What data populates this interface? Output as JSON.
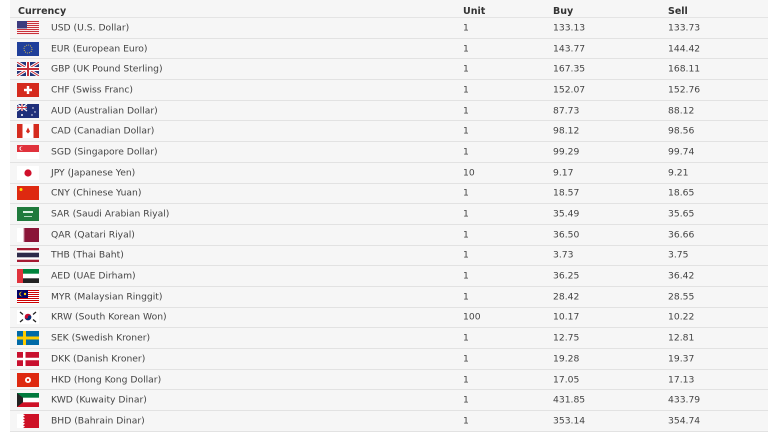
{
  "table": {
    "headers": {
      "currency": "Currency",
      "unit": "Unit",
      "buy": "Buy",
      "sell": "Sell"
    },
    "rows": [
      {
        "code": "USD",
        "name": "USD (U.S. Dollar)",
        "unit": "1",
        "buy": "133.13",
        "sell": "133.73",
        "flag": "us-flag"
      },
      {
        "code": "EUR",
        "name": "EUR (European Euro)",
        "unit": "1",
        "buy": "143.77",
        "sell": "144.42",
        "flag": "eu-flag"
      },
      {
        "code": "GBP",
        "name": "GBP (UK Pound Sterling)",
        "unit": "1",
        "buy": "167.35",
        "sell": "168.11",
        "flag": "uk-flag"
      },
      {
        "code": "CHF",
        "name": "CHF (Swiss Franc)",
        "unit": "1",
        "buy": "152.07",
        "sell": "152.76",
        "flag": "swiss-flag"
      },
      {
        "code": "AUD",
        "name": "AUD (Australian Dollar)",
        "unit": "1",
        "buy": "87.73",
        "sell": "88.12",
        "flag": "australia-flag"
      },
      {
        "code": "CAD",
        "name": "CAD (Canadian Dollar)",
        "unit": "1",
        "buy": "98.12",
        "sell": "98.56",
        "flag": "canada-flag"
      },
      {
        "code": "SGD",
        "name": "SGD (Singapore Dollar)",
        "unit": "1",
        "buy": "99.29",
        "sell": "99.74",
        "flag": "singapore-flag"
      },
      {
        "code": "JPY",
        "name": "JPY (Japanese Yen)",
        "unit": "10",
        "buy": "9.17",
        "sell": "9.21",
        "flag": "japan-flag"
      },
      {
        "code": "CNY",
        "name": "CNY (Chinese Yuan)",
        "unit": "1",
        "buy": "18.57",
        "sell": "18.65",
        "flag": "china-flag"
      },
      {
        "code": "SAR",
        "name": "SAR (Saudi Arabian Riyal)",
        "unit": "1",
        "buy": "35.49",
        "sell": "35.65",
        "flag": "saudi-flag"
      },
      {
        "code": "QAR",
        "name": "QAR (Qatari Riyal)",
        "unit": "1",
        "buy": "36.50",
        "sell": "36.66",
        "flag": "qatar-flag"
      },
      {
        "code": "THB",
        "name": "THB (Thai Baht)",
        "unit": "1",
        "buy": "3.73",
        "sell": "3.75",
        "flag": "thailand-flag"
      },
      {
        "code": "AED",
        "name": "AED (UAE Dirham)",
        "unit": "1",
        "buy": "36.25",
        "sell": "36.42",
        "flag": "uae-flag"
      },
      {
        "code": "MYR",
        "name": "MYR (Malaysian Ringgit)",
        "unit": "1",
        "buy": "28.42",
        "sell": "28.55",
        "flag": "malaysia-flag"
      },
      {
        "code": "KRW",
        "name": "KRW (South Korean Won)",
        "unit": "100",
        "buy": "10.17",
        "sell": "10.22",
        "flag": "korea-flag"
      },
      {
        "code": "SEK",
        "name": "SEK (Swedish Kroner)",
        "unit": "1",
        "buy": "12.75",
        "sell": "12.81",
        "flag": "sweden-flag"
      },
      {
        "code": "DKK",
        "name": "DKK (Danish Kroner)",
        "unit": "1",
        "buy": "19.28",
        "sell": "19.37",
        "flag": "denmark-flag"
      },
      {
        "code": "HKD",
        "name": "HKD (Hong Kong Dollar)",
        "unit": "1",
        "buy": "17.05",
        "sell": "17.13",
        "flag": "hongkong-flag"
      },
      {
        "code": "KWD",
        "name": "KWD (Kuwaity Dinar)",
        "unit": "1",
        "buy": "431.85",
        "sell": "433.79",
        "flag": "kuwait-flag"
      },
      {
        "code": "BHD",
        "name": "BHD (Bahrain Dinar)",
        "unit": "1",
        "buy": "353.14",
        "sell": "354.74",
        "flag": "bahrain-flag"
      }
    ]
  }
}
